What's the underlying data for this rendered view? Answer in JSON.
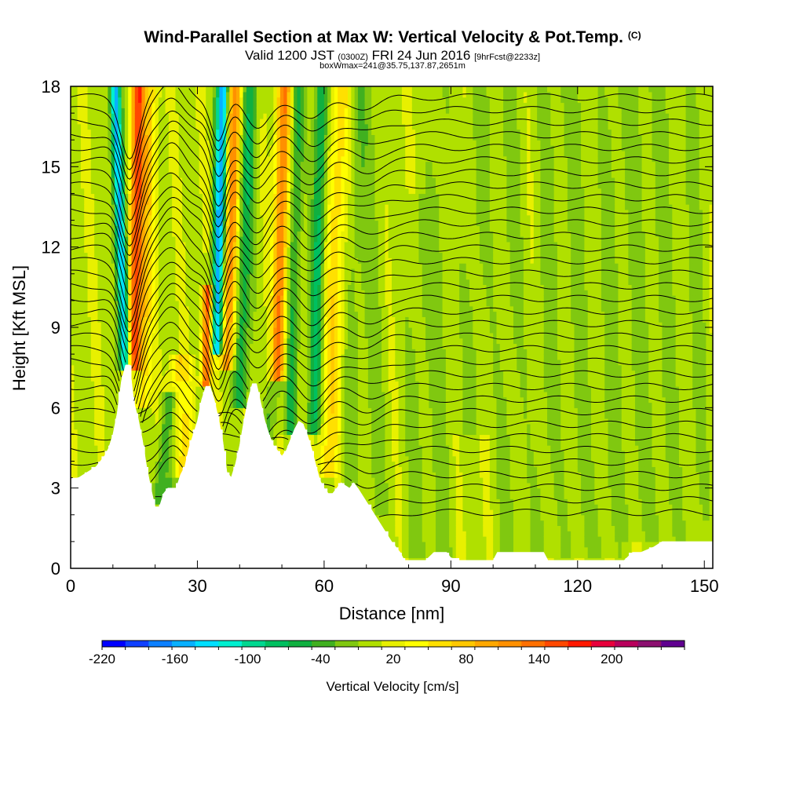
{
  "header": {
    "title": "Wind-Parallel Section at Max W: Vertical Velocity & Pot.Temp.",
    "copyright": "(C)",
    "valid_prefix": "Valid 1200 JST",
    "valid_utc": "(0300Z)",
    "valid_date": "FRI 24 Jun 2016",
    "forecast": "[9hrFcst@2233z]",
    "box_info": "boxWmax=241@35.75,137.87,2651m"
  },
  "chart_data": {
    "type": "heatmap",
    "xlabel": "Distance [nm]",
    "ylabel": "Height [Kft MSL]",
    "xlim": [
      0,
      152
    ],
    "ylim": [
      0,
      18
    ],
    "x_ticks": [
      0,
      30,
      60,
      90,
      120,
      150
    ],
    "y_ticks": [
      0,
      3,
      6,
      9,
      12,
      15,
      18
    ],
    "x_tick_labels": [
      "0",
      "30",
      "60",
      "90",
      "120",
      "150"
    ],
    "y_tick_labels": [
      "0",
      "3",
      "6",
      "9",
      "12",
      "15",
      "18"
    ],
    "colorbar": {
      "label": "Vertical Velocity [cm/s]",
      "range": [
        -220,
        260
      ],
      "step": 20,
      "tick_values": [
        -220,
        -160,
        -100,
        -40,
        20,
        80,
        140,
        200
      ],
      "tick_labels": [
        "-220",
        "-160",
        "-100",
        "-40",
        "20",
        "80",
        "140",
        "200"
      ],
      "colors": [
        "#0000ff",
        "#0f40ff",
        "#0c80ff",
        "#08b0ff",
        "#00e0ff",
        "#00f0d0",
        "#00d890",
        "#00c060",
        "#10b040",
        "#40b020",
        "#80c810",
        "#b0e000",
        "#e8f000",
        "#ffff00",
        "#ffe000",
        "#ffc800",
        "#ffa800",
        "#ff9000",
        "#ff7000",
        "#ff4800",
        "#ff1800",
        "#e8003c",
        "#b8005c",
        "#8c1070",
        "#600090"
      ]
    },
    "terrain": [
      [
        0,
        3.3
      ],
      [
        2,
        3.4
      ],
      [
        4,
        3.6
      ],
      [
        6,
        3.8
      ],
      [
        8,
        4.2
      ],
      [
        9,
        4.5
      ],
      [
        10,
        5.0
      ],
      [
        11,
        5.8
      ],
      [
        12,
        7.0
      ],
      [
        13,
        7.6
      ],
      [
        14,
        7.6
      ],
      [
        15,
        6.2
      ],
      [
        16,
        5.6
      ],
      [
        17,
        4.8
      ],
      [
        18,
        3.8
      ],
      [
        19,
        3.0
      ],
      [
        20,
        2.3
      ],
      [
        21,
        2.3
      ],
      [
        22,
        2.8
      ],
      [
        23,
        3.0
      ],
      [
        25,
        3.0
      ],
      [
        26,
        3.5
      ],
      [
        27,
        3.8
      ],
      [
        28,
        4.5
      ],
      [
        29,
        5.0
      ],
      [
        30,
        5.5
      ],
      [
        31,
        6.3
      ],
      [
        32,
        6.8
      ],
      [
        33,
        6.8
      ],
      [
        34,
        6.3
      ],
      [
        35,
        5.6
      ],
      [
        36,
        4.8
      ],
      [
        37,
        3.6
      ],
      [
        38,
        3.4
      ],
      [
        39,
        3.9
      ],
      [
        40,
        4.6
      ],
      [
        41,
        5.5
      ],
      [
        42,
        6.3
      ],
      [
        43,
        6.9
      ],
      [
        44,
        6.9
      ],
      [
        45,
        6.2
      ],
      [
        46,
        5.5
      ],
      [
        47,
        5.0
      ],
      [
        48,
        4.6
      ],
      [
        49,
        4.4
      ],
      [
        50,
        4.2
      ],
      [
        51,
        4.4
      ],
      [
        52,
        4.8
      ],
      [
        53,
        5.2
      ],
      [
        54,
        5.5
      ],
      [
        55,
        5.4
      ],
      [
        56,
        5.0
      ],
      [
        57,
        4.5
      ],
      [
        58,
        3.9
      ],
      [
        59,
        3.3
      ],
      [
        60,
        3.0
      ],
      [
        61,
        2.8
      ],
      [
        62,
        2.8
      ],
      [
        63,
        3.0
      ],
      [
        64,
        3.2
      ],
      [
        65,
        3.1
      ],
      [
        66,
        3.0
      ],
      [
        67,
        3.2
      ],
      [
        68,
        3.0
      ],
      [
        70,
        2.5
      ],
      [
        72,
        2.0
      ],
      [
        74,
        1.5
      ],
      [
        76,
        1.0
      ],
      [
        78,
        0.6
      ],
      [
        79,
        0.3
      ],
      [
        84,
        0.3
      ],
      [
        86,
        0.6
      ],
      [
        89,
        0.6
      ],
      [
        90,
        0.4
      ],
      [
        92,
        0.3
      ],
      [
        100,
        0.3
      ],
      [
        101,
        0.6
      ],
      [
        112,
        0.6
      ],
      [
        113,
        0.3
      ],
      [
        131,
        0.3
      ],
      [
        133,
        0.6
      ],
      [
        135,
        0.6
      ],
      [
        138,
        0.8
      ],
      [
        140,
        1.0
      ],
      [
        142,
        1.0
      ],
      [
        143,
        1.0
      ],
      [
        152,
        1.0
      ]
    ],
    "vertical_velocity_features": [
      {
        "x": 13,
        "z_bottom": 7.5,
        "z_top": 18,
        "lean": -2.5,
        "width": 1.3,
        "w": -170
      },
      {
        "x": 15,
        "z_bottom": 7.5,
        "z_top": 18,
        "lean": 1.0,
        "width": 1.6,
        "w": 160
      },
      {
        "x": 17,
        "z_bottom": 6.0,
        "z_top": 18,
        "lean": 2.0,
        "width": 1.8,
        "w": 60
      },
      {
        "x": 21,
        "z_bottom": 2.5,
        "z_top": 6.5,
        "lean": 2.5,
        "width": 1.5,
        "w": -60
      },
      {
        "x": 23.5,
        "z_bottom": 3.0,
        "z_top": 7.0,
        "lean": 3.0,
        "width": 1.5,
        "w": -30
      },
      {
        "x": 26,
        "z_bottom": 3.5,
        "z_top": 8.0,
        "lean": 0.0,
        "width": 2.5,
        "w": 60
      },
      {
        "x": 32,
        "z_bottom": 6.8,
        "z_top": 10.5,
        "lean": 0.5,
        "width": 1.2,
        "w": 150
      },
      {
        "x": 34.5,
        "z_bottom": 8.0,
        "z_top": 18,
        "lean": 1.5,
        "width": 1.4,
        "w": -170
      },
      {
        "x": 37,
        "z_bottom": 7.5,
        "z_top": 18,
        "lean": 2.0,
        "width": 1.6,
        "w": 120
      },
      {
        "x": 40,
        "z_bottom": 6.0,
        "z_top": 18,
        "lean": 2.5,
        "width": 1.8,
        "w": -70
      },
      {
        "x": 46.5,
        "z_bottom": 4.5,
        "z_top": 7.0,
        "lean": 2.0,
        "width": 1.6,
        "w": -40
      },
      {
        "x": 49,
        "z_bottom": 7.0,
        "z_top": 18,
        "lean": 1.5,
        "width": 1.6,
        "w": 130
      },
      {
        "x": 52,
        "z_bottom": 5.0,
        "z_top": 18,
        "lean": 2.0,
        "width": 1.5,
        "w": -60
      },
      {
        "x": 57.5,
        "z_bottom": 5.0,
        "z_top": 18,
        "lean": 2.0,
        "width": 1.6,
        "w": -80
      },
      {
        "x": 61,
        "z_bottom": 3.5,
        "z_top": 18,
        "lean": 3.0,
        "width": 2.2,
        "w": 60
      },
      {
        "x": 66,
        "z_bottom": 3.0,
        "z_top": 18,
        "lean": 2.0,
        "width": 2.0,
        "w": -20
      },
      {
        "x": 72,
        "z_bottom": 2.0,
        "z_top": 18,
        "lean": -2.0,
        "width": 3.0,
        "w": -20
      },
      {
        "x": 82,
        "z_bottom": 0.5,
        "z_top": 14,
        "lean": 1.0,
        "width": 3.0,
        "w": -20
      },
      {
        "x": 88,
        "z_bottom": 0.5,
        "z_top": 18,
        "lean": -1.0,
        "width": 2.5,
        "w": -20
      },
      {
        "x": 95,
        "z_bottom": 5.0,
        "z_top": 18,
        "lean": 2.0,
        "width": 3.0,
        "w": -20
      },
      {
        "x": 104,
        "z_bottom": 0.5,
        "z_top": 18,
        "lean": 0.0,
        "width": 3.0,
        "w": -20
      },
      {
        "x": 112,
        "z_bottom": 0.5,
        "z_top": 18,
        "lean": 2.0,
        "width": 3.0,
        "w": -20
      },
      {
        "x": 120,
        "z_bottom": 0.5,
        "z_top": 18,
        "lean": 0.0,
        "width": 3.0,
        "w": -20
      },
      {
        "x": 127,
        "z_bottom": 0.5,
        "z_top": 18,
        "lean": 1.5,
        "width": 3.0,
        "w": -20
      },
      {
        "x": 134,
        "z_bottom": 1.0,
        "z_top": 18,
        "lean": 0.0,
        "width": 3.0,
        "w": -20
      },
      {
        "x": 141,
        "z_bottom": 1.0,
        "z_top": 18,
        "lean": -1.0,
        "width": 3.0,
        "w": -20
      },
      {
        "x": 148,
        "z_bottom": 1.0,
        "z_top": 18,
        "lean": 0.0,
        "width": 2.5,
        "w": -20
      }
    ],
    "theta_isentropes": {
      "count": 34,
      "top_height": 17.6,
      "bottom_height": 1.3,
      "height_step": 0.47,
      "distortion": [
        {
          "x": 14,
          "amplitude": 2.2,
          "width": 3.0,
          "z_bottom": 6.0
        },
        {
          "x": 24,
          "amplitude": -1.0,
          "width": 4.0,
          "z_bottom": 3.0
        },
        {
          "x": 35,
          "amplitude": 1.6,
          "width": 2.5,
          "z_bottom": 6.0
        },
        {
          "x": 44,
          "amplitude": 1.2,
          "width": 4.0,
          "z_bottom": 5.0
        },
        {
          "x": 57,
          "amplitude": 0.9,
          "width": 4.5,
          "z_bottom": 4.0
        },
        {
          "x": 70,
          "amplitude": 0.4,
          "width": 5.0,
          "z_bottom": 2.0
        }
      ]
    }
  }
}
